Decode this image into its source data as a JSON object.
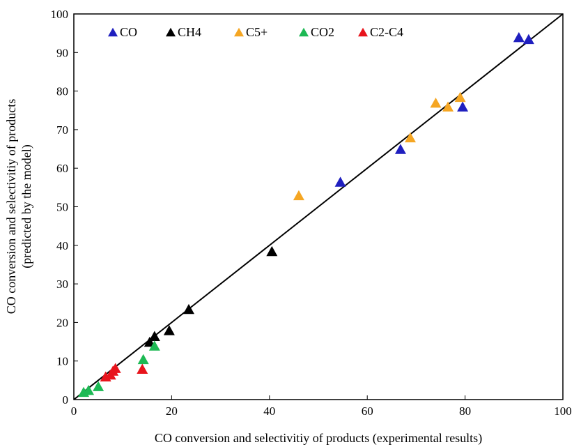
{
  "chart_data": {
    "type": "scatter",
    "xlabel": "CO conversion and selectivitiy of products (experimental results)",
    "ylabel_line1": "CO conversion and selectivitiy of products",
    "ylabel_line2": "(predicted by the model)",
    "xlim": [
      0,
      100
    ],
    "ylim": [
      0,
      100
    ],
    "xticks": [
      0,
      20,
      40,
      60,
      80,
      100
    ],
    "yticks": [
      0,
      10,
      20,
      30,
      40,
      50,
      60,
      70,
      80,
      90,
      100
    ],
    "grid": false,
    "legend_position": "top-left",
    "reference_line": {
      "from": [
        0,
        0
      ],
      "to": [
        100,
        100
      ],
      "color": "#000000"
    },
    "series": [
      {
        "name": "CO",
        "color": "#1f1fbf",
        "points": [
          [
            54.5,
            56.5
          ],
          [
            66.8,
            65
          ],
          [
            79.5,
            76
          ],
          [
            91,
            94
          ],
          [
            93,
            93.5
          ]
        ]
      },
      {
        "name": "CH4",
        "color": "#000000",
        "points": [
          [
            15.5,
            15
          ],
          [
            16.5,
            16.5
          ],
          [
            19.5,
            18
          ],
          [
            23.5,
            23.5
          ],
          [
            40.5,
            38.5
          ]
        ]
      },
      {
        "name": "C5+",
        "color": "#f5a623",
        "points": [
          [
            46,
            53
          ],
          [
            68.8,
            68
          ],
          [
            74,
            77
          ],
          [
            76.5,
            76
          ],
          [
            79,
            78.5
          ]
        ]
      },
      {
        "name": "CO2",
        "color": "#1db954",
        "points": [
          [
            2,
            2
          ],
          [
            3,
            2.5
          ],
          [
            5,
            3.5
          ],
          [
            14.2,
            10.5
          ],
          [
            16.5,
            14
          ]
        ]
      },
      {
        "name": "C2-C4",
        "color": "#e8141c",
        "points": [
          [
            6.5,
            6
          ],
          [
            7.5,
            6.5
          ],
          [
            8,
            7.5
          ],
          [
            8.5,
            8.2
          ],
          [
            14,
            8
          ]
        ]
      }
    ]
  }
}
